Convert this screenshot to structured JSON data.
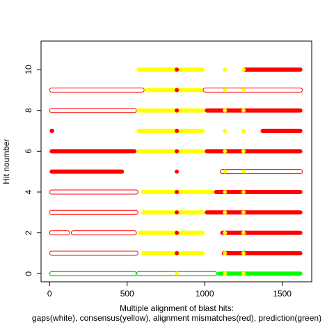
{
  "chart_data": {
    "type": "scatter",
    "title": "",
    "xlabel": "Multiple alignment of blast hits:",
    "xlabel_line2": "gaps(white), consensus(yellow), alignment mismatches(red), prediction(green)",
    "ylabel": "Hit noumber",
    "xlim": [
      -55,
      1690
    ],
    "ylim": [
      -0.4,
      11.4
    ],
    "x_ticks": [
      0,
      500,
      1000,
      1500
    ],
    "y_ticks": [
      0,
      2,
      4,
      6,
      8,
      10
    ],
    "grid": false,
    "colors": {
      "gap": "#ffffff",
      "consensus": "#ffff00",
      "mismatch": "#ff0000",
      "prediction": "#00ff00",
      "outline_red": "#ff0000",
      "outline_green": "#00cc00",
      "axis": "#000000"
    },
    "marker_positions": [
      820,
      1130,
      1250
    ],
    "hits": [
      {
        "hit": 0,
        "segments": [
          {
            "from": 0,
            "to": 560,
            "kind": "outline_green"
          },
          {
            "from": 560,
            "to": 1080,
            "kind": "outline_green"
          },
          {
            "from": 1080,
            "to": 1630,
            "kind": "prediction"
          }
        ],
        "markers": [
          "consensus",
          "consensus",
          "consensus"
        ]
      },
      {
        "hit": 1,
        "segments": [
          {
            "from": 0,
            "to": 570,
            "kind": "outline_red"
          },
          {
            "from": 590,
            "to": 1000,
            "kind": "consensus"
          },
          {
            "from": 1000,
            "to": 1110,
            "kind": "gap"
          },
          {
            "from": 1110,
            "to": 1630,
            "kind": "mismatch"
          }
        ],
        "markers": [
          "mismatch",
          "consensus",
          "consensus"
        ]
      },
      {
        "hit": 2,
        "segments": [
          {
            "from": 0,
            "to": 130,
            "kind": "outline_red"
          },
          {
            "from": 140,
            "to": 560,
            "kind": "outline_red"
          },
          {
            "from": 570,
            "to": 1000,
            "kind": "consensus"
          },
          {
            "from": 1000,
            "to": 1100,
            "kind": "gap"
          },
          {
            "from": 1100,
            "to": 1630,
            "kind": "mismatch"
          }
        ],
        "markers": [
          "mismatch",
          "consensus",
          "consensus"
        ]
      },
      {
        "hit": 3,
        "segments": [
          {
            "from": 0,
            "to": 570,
            "kind": "outline_red"
          },
          {
            "from": 590,
            "to": 1000,
            "kind": "consensus"
          },
          {
            "from": 1000,
            "to": 1630,
            "kind": "mismatch"
          }
        ],
        "markers": [
          "mismatch",
          "consensus",
          "consensus"
        ]
      },
      {
        "hit": 4,
        "segments": [
          {
            "from": 0,
            "to": 570,
            "kind": "outline_red"
          },
          {
            "from": 590,
            "to": 1060,
            "kind": "consensus"
          },
          {
            "from": 1060,
            "to": 1630,
            "kind": "mismatch"
          }
        ],
        "markers": [
          "mismatch",
          "consensus",
          "consensus"
        ]
      },
      {
        "hit": 5,
        "segments": [
          {
            "from": 0,
            "to": 480,
            "kind": "mismatch"
          },
          {
            "from": 480,
            "to": 1100,
            "kind": "gap"
          },
          {
            "from": 1100,
            "to": 1630,
            "kind": "outline_red"
          }
        ],
        "markers": [
          "mismatch",
          "consensus",
          "consensus"
        ]
      },
      {
        "hit": 6,
        "segments": [
          {
            "from": 0,
            "to": 560,
            "kind": "mismatch"
          },
          {
            "from": 560,
            "to": 1000,
            "kind": "consensus"
          },
          {
            "from": 1000,
            "to": 1630,
            "kind": "mismatch"
          }
        ],
        "markers": [
          "mismatch",
          "consensus",
          "consensus"
        ]
      },
      {
        "hit": 7,
        "segments": [
          {
            "from": 0,
            "to": 30,
            "kind": "mismatch"
          },
          {
            "from": 30,
            "to": 560,
            "kind": "gap"
          },
          {
            "from": 560,
            "to": 1000,
            "kind": "consensus"
          },
          {
            "from": 1000,
            "to": 1360,
            "kind": "gap"
          },
          {
            "from": 1360,
            "to": 1630,
            "kind": "mismatch"
          }
        ],
        "markers": [
          "mismatch",
          "consensus",
          "consensus"
        ]
      },
      {
        "hit": 8,
        "segments": [
          {
            "from": 0,
            "to": 560,
            "kind": "outline_red"
          },
          {
            "from": 560,
            "to": 1000,
            "kind": "consensus"
          },
          {
            "from": 1000,
            "to": 1630,
            "kind": "mismatch"
          }
        ],
        "markers": [
          "mismatch",
          "consensus",
          "consensus"
        ]
      },
      {
        "hit": 9,
        "segments": [
          {
            "from": 0,
            "to": 610,
            "kind": "outline_red"
          },
          {
            "from": 610,
            "to": 990,
            "kind": "consensus"
          },
          {
            "from": 990,
            "to": 1630,
            "kind": "outline_red"
          }
        ],
        "markers": [
          "mismatch",
          "consensus",
          "consensus"
        ]
      },
      {
        "hit": 10,
        "segments": [
          {
            "from": 0,
            "to": 560,
            "kind": "gap"
          },
          {
            "from": 560,
            "to": 1000,
            "kind": "consensus"
          },
          {
            "from": 1000,
            "to": 1240,
            "kind": "gap"
          },
          {
            "from": 1240,
            "to": 1630,
            "kind": "mismatch"
          }
        ],
        "markers": [
          "mismatch",
          "consensus",
          "consensus"
        ]
      }
    ]
  }
}
